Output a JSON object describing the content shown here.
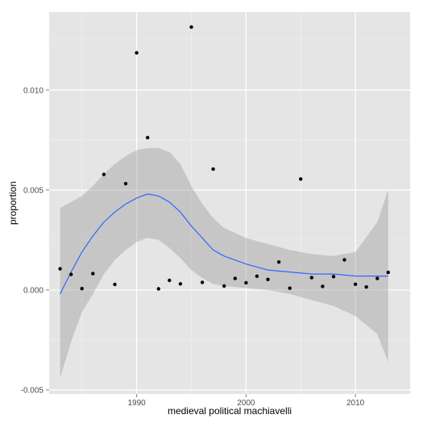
{
  "chart_data": {
    "type": "scatter",
    "xlabel": "medieval political machiavelli",
    "ylabel": "proportion",
    "xlim": [
      1982,
      2015
    ],
    "ylim": [
      -0.0052,
      0.0139
    ],
    "x_ticks": [
      1990,
      2000,
      2010
    ],
    "x_tick_labels": [
      "1990",
      "2000",
      "2010"
    ],
    "y_ticks": [
      -0.005,
      0.0,
      0.005,
      0.01
    ],
    "y_tick_labels": [
      "-0.005",
      "0.000",
      "0.005",
      "0.010"
    ],
    "grid": true,
    "colors": {
      "panel": "#e5e5e5",
      "grid_major": "#ffffff",
      "points": "#000000",
      "smooth_line": "#3366ff",
      "ribbon": "#999999"
    },
    "points": [
      {
        "x": 1983,
        "y": 0.00106
      },
      {
        "x": 1984,
        "y": 0.00078
      },
      {
        "x": 1985,
        "y": 7e-05
      },
      {
        "x": 1986,
        "y": 0.00082
      },
      {
        "x": 1987,
        "y": 0.00578
      },
      {
        "x": 1988,
        "y": 0.00028
      },
      {
        "x": 1989,
        "y": 0.00532
      },
      {
        "x": 1990,
        "y": 0.01186
      },
      {
        "x": 1991,
        "y": 0.00762
      },
      {
        "x": 1992,
        "y": 6e-05
      },
      {
        "x": 1993,
        "y": 0.00048
      },
      {
        "x": 1994,
        "y": 0.00031
      },
      {
        "x": 1995,
        "y": 0.01315
      },
      {
        "x": 1996,
        "y": 0.00038
      },
      {
        "x": 1997,
        "y": 0.00605
      },
      {
        "x": 1998,
        "y": 0.0002
      },
      {
        "x": 1999,
        "y": 0.00058
      },
      {
        "x": 2000,
        "y": 0.00036
      },
      {
        "x": 2001,
        "y": 0.00069
      },
      {
        "x": 2002,
        "y": 0.00053
      },
      {
        "x": 2003,
        "y": 0.0014
      },
      {
        "x": 2004,
        "y": 9e-05
      },
      {
        "x": 2005,
        "y": 0.00555
      },
      {
        "x": 2006,
        "y": 0.00062
      },
      {
        "x": 2007,
        "y": 0.00018
      },
      {
        "x": 2008,
        "y": 0.00067
      },
      {
        "x": 2009,
        "y": 0.00151
      },
      {
        "x": 2010,
        "y": 0.00029
      },
      {
        "x": 2011,
        "y": 0.00015
      },
      {
        "x": 2012,
        "y": 0.00058
      },
      {
        "x": 2013,
        "y": 0.00088
      }
    ],
    "smooth": {
      "x": [
        1983,
        1984,
        1985,
        1986,
        1987,
        1988,
        1989,
        1990,
        1991,
        1992,
        1993,
        1994,
        1995,
        1996,
        1997,
        1998,
        2000,
        2002,
        2004,
        2006,
        2008,
        2010,
        2012,
        2013
      ],
      "y": [
        -0.0002,
        0.0009,
        0.0019,
        0.0027,
        0.0034,
        0.0039,
        0.0043,
        0.0046,
        0.0048,
        0.0047,
        0.0044,
        0.0039,
        0.0032,
        0.0026,
        0.002,
        0.0017,
        0.0013,
        0.001,
        0.0009,
        0.0008,
        0.0008,
        0.0007,
        0.0007,
        0.0007
      ],
      "upper": [
        0.0041,
        0.0044,
        0.0047,
        0.0052,
        0.0058,
        0.0063,
        0.0067,
        0.007,
        0.0071,
        0.0071,
        0.0069,
        0.0063,
        0.0052,
        0.0043,
        0.0036,
        0.0031,
        0.0026,
        0.0023,
        0.002,
        0.0018,
        0.0017,
        0.0019,
        0.0034,
        0.005
      ],
      "lower": [
        -0.0044,
        -0.0026,
        -0.0011,
        -0.0002,
        0.0008,
        0.0015,
        0.002,
        0.0024,
        0.0026,
        0.0025,
        0.0021,
        0.0016,
        0.001,
        0.0006,
        0.0003,
        0.0002,
        0.0001,
        0.0,
        -0.0002,
        -0.0005,
        -0.0008,
        -0.0013,
        -0.0022,
        -0.0036
      ]
    }
  }
}
